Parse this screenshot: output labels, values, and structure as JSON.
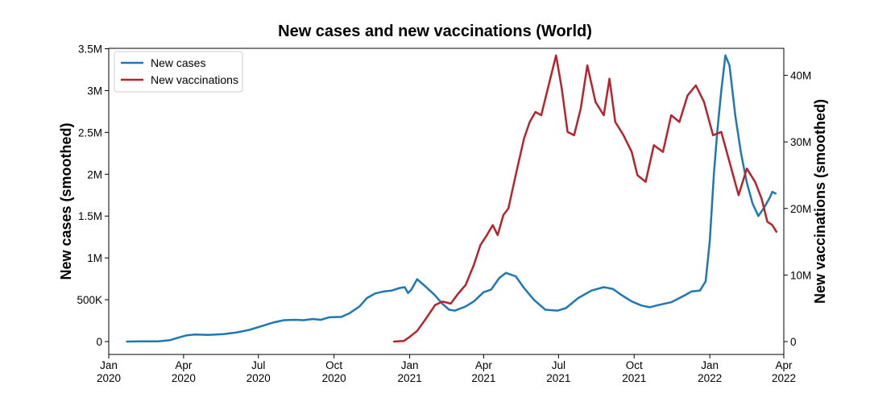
{
  "chart_data": {
    "type": "line",
    "title": "New cases and new vaccinations (World)",
    "xlabel": "",
    "ylabel_left": "New cases (smoothed)",
    "ylabel_right": "New vaccinations (smoothed)",
    "x_range": [
      "2020-01-01",
      "2022-04-01"
    ],
    "ylim_left": [
      0,
      3500000
    ],
    "ylim_right": [
      0,
      44000000
    ],
    "grid": false,
    "legend_position": "top-left",
    "x_ticks": [
      {
        "date": "2020-01-01",
        "line1": "Jan",
        "line2": "2020"
      },
      {
        "date": "2020-04-01",
        "line1": "Apr",
        "line2": "2020"
      },
      {
        "date": "2020-07-01",
        "line1": "Jul",
        "line2": "2020"
      },
      {
        "date": "2020-10-01",
        "line1": "Oct",
        "line2": "2020"
      },
      {
        "date": "2021-01-01",
        "line1": "Jan",
        "line2": "2021"
      },
      {
        "date": "2021-04-01",
        "line1": "Apr",
        "line2": "2021"
      },
      {
        "date": "2021-07-01",
        "line1": "Jul",
        "line2": "2021"
      },
      {
        "date": "2021-10-01",
        "line1": "Oct",
        "line2": "2021"
      },
      {
        "date": "2022-01-01",
        "line1": "Jan",
        "line2": "2022"
      },
      {
        "date": "2022-04-01",
        "line1": "Apr",
        "line2": "2022"
      }
    ],
    "y_ticks_left": [
      {
        "value": 0,
        "label": "0"
      },
      {
        "value": 500000,
        "label": "500K"
      },
      {
        "value": 1000000,
        "label": "1M"
      },
      {
        "value": 1500000,
        "label": "1.5M"
      },
      {
        "value": 2000000,
        "label": "2M"
      },
      {
        "value": 2500000,
        "label": "2.5M"
      },
      {
        "value": 3000000,
        "label": "3M"
      },
      {
        "value": 3500000,
        "label": "3.5M"
      }
    ],
    "y_ticks_right": [
      {
        "value": 0,
        "label": "0"
      },
      {
        "value": 10000000,
        "label": "10M"
      },
      {
        "value": 20000000,
        "label": "20M"
      },
      {
        "value": 30000000,
        "label": "30M"
      },
      {
        "value": 40000000,
        "label": "40M"
      }
    ],
    "series": [
      {
        "name": "New cases",
        "color": "#1f77b4",
        "axis": "left",
        "points": [
          [
            "2020-01-23",
            0
          ],
          [
            "2020-02-10",
            2000
          ],
          [
            "2020-03-01",
            3000
          ],
          [
            "2020-03-15",
            15000
          ],
          [
            "2020-03-25",
            45000
          ],
          [
            "2020-04-05",
            75000
          ],
          [
            "2020-04-15",
            85000
          ],
          [
            "2020-05-01",
            80000
          ],
          [
            "2020-05-20",
            90000
          ],
          [
            "2020-06-05",
            110000
          ],
          [
            "2020-06-20",
            140000
          ],
          [
            "2020-07-05",
            185000
          ],
          [
            "2020-07-20",
            230000
          ],
          [
            "2020-08-01",
            255000
          ],
          [
            "2020-08-15",
            260000
          ],
          [
            "2020-08-25",
            255000
          ],
          [
            "2020-09-05",
            270000
          ],
          [
            "2020-09-15",
            260000
          ],
          [
            "2020-09-25",
            290000
          ],
          [
            "2020-10-10",
            295000
          ],
          [
            "2020-10-20",
            340000
          ],
          [
            "2020-11-01",
            420000
          ],
          [
            "2020-11-10",
            520000
          ],
          [
            "2020-11-20",
            575000
          ],
          [
            "2020-12-01",
            600000
          ],
          [
            "2020-12-10",
            610000
          ],
          [
            "2020-12-20",
            640000
          ],
          [
            "2020-12-26",
            650000
          ],
          [
            "2020-12-30",
            580000
          ],
          [
            "2021-01-03",
            620000
          ],
          [
            "2021-01-10",
            745000
          ],
          [
            "2021-01-20",
            660000
          ],
          [
            "2021-01-31",
            560000
          ],
          [
            "2021-02-10",
            450000
          ],
          [
            "2021-02-18",
            380000
          ],
          [
            "2021-02-25",
            370000
          ],
          [
            "2021-03-10",
            420000
          ],
          [
            "2021-03-20",
            480000
          ],
          [
            "2021-04-01",
            590000
          ],
          [
            "2021-04-10",
            620000
          ],
          [
            "2021-04-20",
            760000
          ],
          [
            "2021-04-28",
            820000
          ],
          [
            "2021-05-10",
            780000
          ],
          [
            "2021-05-20",
            640000
          ],
          [
            "2021-06-01",
            500000
          ],
          [
            "2021-06-15",
            380000
          ],
          [
            "2021-06-30",
            370000
          ],
          [
            "2021-07-10",
            400000
          ],
          [
            "2021-07-25",
            520000
          ],
          [
            "2021-08-10",
            610000
          ],
          [
            "2021-08-25",
            650000
          ],
          [
            "2021-09-05",
            630000
          ],
          [
            "2021-09-15",
            560000
          ],
          [
            "2021-09-28",
            480000
          ],
          [
            "2021-10-10",
            430000
          ],
          [
            "2021-10-20",
            410000
          ],
          [
            "2021-11-01",
            440000
          ],
          [
            "2021-11-15",
            470000
          ],
          [
            "2021-12-01",
            550000
          ],
          [
            "2021-12-10",
            600000
          ],
          [
            "2021-12-20",
            610000
          ],
          [
            "2021-12-27",
            720000
          ],
          [
            "2022-01-01",
            1200000
          ],
          [
            "2022-01-06",
            2000000
          ],
          [
            "2022-01-10",
            2500000
          ],
          [
            "2022-01-15",
            3000000
          ],
          [
            "2022-01-20",
            3420000
          ],
          [
            "2022-01-25",
            3300000
          ],
          [
            "2022-02-01",
            2700000
          ],
          [
            "2022-02-08",
            2250000
          ],
          [
            "2022-02-15",
            1900000
          ],
          [
            "2022-02-22",
            1650000
          ],
          [
            "2022-03-01",
            1500000
          ],
          [
            "2022-03-08",
            1600000
          ],
          [
            "2022-03-15",
            1720000
          ],
          [
            "2022-03-18",
            1790000
          ],
          [
            "2022-03-22",
            1770000
          ]
        ]
      },
      {
        "name": "New vaccinations",
        "color": "#b5232c",
        "axis": "right",
        "points": [
          [
            "2020-12-13",
            0
          ],
          [
            "2020-12-25",
            100000
          ],
          [
            "2021-01-01",
            700000
          ],
          [
            "2021-01-10",
            1600000
          ],
          [
            "2021-01-20",
            3300000
          ],
          [
            "2021-02-01",
            5500000
          ],
          [
            "2021-02-10",
            6000000
          ],
          [
            "2021-02-20",
            5700000
          ],
          [
            "2021-03-01",
            7200000
          ],
          [
            "2021-03-10",
            8500000
          ],
          [
            "2021-03-20",
            11500000
          ],
          [
            "2021-03-28",
            14500000
          ],
          [
            "2021-04-05",
            16000000
          ],
          [
            "2021-04-12",
            17500000
          ],
          [
            "2021-04-18",
            16000000
          ],
          [
            "2021-04-25",
            19000000
          ],
          [
            "2021-05-01",
            20000000
          ],
          [
            "2021-05-10",
            25000000
          ],
          [
            "2021-05-20",
            30500000
          ],
          [
            "2021-05-27",
            33000000
          ],
          [
            "2021-06-03",
            34500000
          ],
          [
            "2021-06-10",
            34000000
          ],
          [
            "2021-06-20",
            39000000
          ],
          [
            "2021-06-28",
            43000000
          ],
          [
            "2021-07-05",
            38000000
          ],
          [
            "2021-07-12",
            31500000
          ],
          [
            "2021-07-20",
            31000000
          ],
          [
            "2021-07-28",
            35000000
          ],
          [
            "2021-08-05",
            41500000
          ],
          [
            "2021-08-15",
            36000000
          ],
          [
            "2021-08-25",
            34000000
          ],
          [
            "2021-09-01",
            39500000
          ],
          [
            "2021-09-08",
            33000000
          ],
          [
            "2021-09-18",
            31000000
          ],
          [
            "2021-09-28",
            28500000
          ],
          [
            "2021-10-05",
            25000000
          ],
          [
            "2021-10-15",
            24000000
          ],
          [
            "2021-10-25",
            29500000
          ],
          [
            "2021-11-05",
            28500000
          ],
          [
            "2021-11-15",
            34000000
          ],
          [
            "2021-11-25",
            33000000
          ],
          [
            "2021-12-05",
            37000000
          ],
          [
            "2021-12-15",
            38500000
          ],
          [
            "2021-12-25",
            36000000
          ],
          [
            "2022-01-05",
            31000000
          ],
          [
            "2022-01-15",
            31500000
          ],
          [
            "2022-01-25",
            27000000
          ],
          [
            "2022-02-05",
            22000000
          ],
          [
            "2022-02-15",
            26000000
          ],
          [
            "2022-02-25",
            24000000
          ],
          [
            "2022-03-05",
            21500000
          ],
          [
            "2022-03-12",
            18000000
          ],
          [
            "2022-03-18",
            17500000
          ],
          [
            "2022-03-23",
            16500000
          ]
        ]
      }
    ]
  }
}
